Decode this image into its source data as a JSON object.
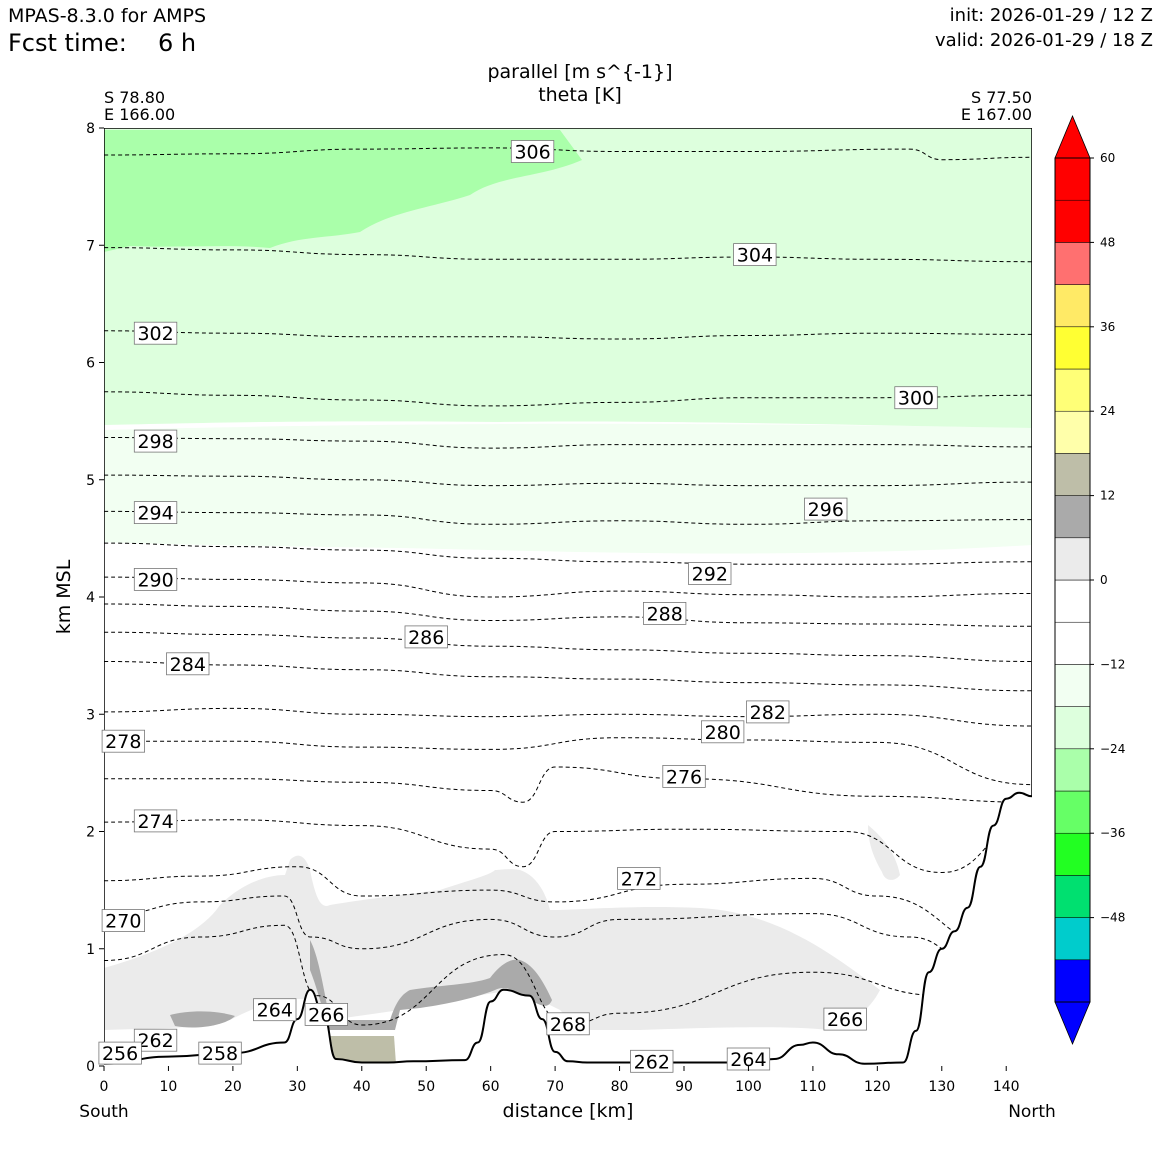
{
  "header": {
    "model": "MPAS-8.3.0 for AMPS",
    "fcst_label": "Fcst time:",
    "fcst_value": "6 h",
    "init": "init: 2026-01-29 / 12 Z",
    "valid": "valid: 2026-01-29 / 18 Z"
  },
  "chart_data": {
    "type": "cross-section",
    "title_line1": "parallel [m s^{-1}]",
    "title_line2": "theta [K]",
    "left_endpoint": {
      "lat": "S 78.80",
      "lon": "E 166.00"
    },
    "right_endpoint": {
      "lat": "S 77.50",
      "lon": "E 167.00"
    },
    "xlabel": "distance [km]",
    "ylabel": "km MSL",
    "x_start_label": "South",
    "x_end_label": "North",
    "xlim": [
      0,
      144
    ],
    "ylim": [
      0,
      8
    ],
    "xticks": [
      0,
      10,
      20,
      30,
      40,
      50,
      60,
      70,
      80,
      90,
      100,
      110,
      120,
      130,
      140
    ],
    "yticks": [
      0,
      1,
      2,
      3,
      4,
      5,
      6,
      7,
      8
    ],
    "colorbar": {
      "levels": [
        -60,
        -54,
        -48,
        -42,
        -36,
        -30,
        -24,
        -18,
        -12,
        -6,
        0,
        6,
        12,
        18,
        24,
        30,
        36,
        42,
        48,
        54,
        60
      ],
      "colors": [
        "#0000ff",
        "#00cccc",
        "#00e070",
        "#22ff22",
        "#66ff66",
        "#aaffaa",
        "#ddffdd",
        "#f2fff2",
        "#ffffff",
        "#ffffff",
        "#ebebeb",
        "#aaaaaa",
        "#bebea8",
        "#ffffaa",
        "#ffff77",
        "#ffff33",
        "#ffea66",
        "#ff7070",
        "#ff0000",
        "#ff0000"
      ],
      "tick_values": [
        60,
        48,
        36,
        24,
        12,
        0,
        -12,
        -24,
        -36,
        -48
      ],
      "tick_labels": [
        "60",
        "48",
        "36",
        "24",
        "12",
        "0",
        "−12",
        "−24",
        "−36",
        "−48"
      ],
      "extend": "both"
    },
    "terrain": {
      "x": [
        0,
        10,
        20,
        28,
        30,
        32,
        34,
        36,
        40,
        44,
        48,
        56,
        58,
        60,
        62,
        66,
        68,
        70,
        72,
        75,
        80,
        90,
        100,
        104,
        108,
        110,
        114,
        118,
        124,
        126,
        128,
        130,
        132,
        134,
        136,
        138,
        140,
        142,
        144
      ],
      "km": [
        0.02,
        0.08,
        0.11,
        0.2,
        0.4,
        0.65,
        0.45,
        0.06,
        0.03,
        0.03,
        0.04,
        0.05,
        0.2,
        0.55,
        0.65,
        0.6,
        0.4,
        0.12,
        0.04,
        0.03,
        0.03,
        0.03,
        0.03,
        0.06,
        0.18,
        0.2,
        0.1,
        0.02,
        0.03,
        0.3,
        0.8,
        1.0,
        1.15,
        1.35,
        1.7,
        2.05,
        2.28,
        2.33,
        2.3
      ]
    },
    "theta_contour_levels": [
      256,
      258,
      262,
      264,
      266,
      268,
      270,
      272,
      274,
      276,
      278,
      280,
      282,
      284,
      286,
      288,
      290,
      292,
      294,
      296,
      298,
      300,
      302,
      304,
      306
    ],
    "theta_labels": [
      {
        "text": "306",
        "x": 66.5,
        "y": 7.8
      },
      {
        "text": "304",
        "x": 101,
        "y": 6.92
      },
      {
        "text": "302",
        "x": 8,
        "y": 6.25
      },
      {
        "text": "300",
        "x": 126,
        "y": 5.7
      },
      {
        "text": "298",
        "x": 8,
        "y": 5.33
      },
      {
        "text": "296",
        "x": 112,
        "y": 4.75
      },
      {
        "text": "294",
        "x": 8,
        "y": 4.72
      },
      {
        "text": "292",
        "x": 94,
        "y": 4.2
      },
      {
        "text": "290",
        "x": 8,
        "y": 4.15
      },
      {
        "text": "288",
        "x": 87,
        "y": 3.86
      },
      {
        "text": "286",
        "x": 50,
        "y": 3.66
      },
      {
        "text": "284",
        "x": 13,
        "y": 3.43
      },
      {
        "text": "282",
        "x": 103,
        "y": 3.02
      },
      {
        "text": "280",
        "x": 96,
        "y": 2.85
      },
      {
        "text": "278",
        "x": 3,
        "y": 2.77
      },
      {
        "text": "276",
        "x": 90,
        "y": 2.47
      },
      {
        "text": "274",
        "x": 8,
        "y": 2.09
      },
      {
        "text": "272",
        "x": 83,
        "y": 1.6
      },
      {
        "text": "270",
        "x": 3,
        "y": 1.24
      },
      {
        "text": "266",
        "x": 34.5,
        "y": 0.44
      },
      {
        "text": "268",
        "x": 72,
        "y": 0.36
      },
      {
        "text": "266",
        "x": 115,
        "y": 0.4
      },
      {
        "text": "264",
        "x": 26.5,
        "y": 0.48
      },
      {
        "text": "262",
        "x": 8,
        "y": 0.22
      },
      {
        "text": "258",
        "x": 18,
        "y": 0.11
      },
      {
        "text": "256",
        "x": 2.5,
        "y": 0.11
      },
      {
        "text": "262",
        "x": 85,
        "y": 0.04
      },
      {
        "text": "264",
        "x": 100,
        "y": 0.06
      }
    ],
    "theta_lines": [
      {
        "level": 306,
        "x": [
          0,
          20,
          40,
          60,
          80,
          100,
          125,
          130,
          144
        ],
        "km": [
          7.77,
          7.78,
          7.82,
          7.83,
          7.8,
          7.8,
          7.82,
          7.73,
          7.75
        ]
      },
      {
        "level": 304,
        "x": [
          0,
          20,
          40,
          60,
          80,
          100,
          120,
          144
        ],
        "km": [
          6.98,
          6.96,
          6.92,
          6.88,
          6.88,
          6.9,
          6.88,
          6.86
        ]
      },
      {
        "level": 302,
        "x": [
          0,
          20,
          40,
          60,
          80,
          100,
          120,
          144
        ],
        "km": [
          6.27,
          6.25,
          6.22,
          6.22,
          6.2,
          6.23,
          6.25,
          6.24
        ]
      },
      {
        "level": 300,
        "x": [
          0,
          20,
          40,
          60,
          80,
          100,
          120,
          144
        ],
        "km": [
          5.75,
          5.72,
          5.68,
          5.63,
          5.66,
          5.7,
          5.7,
          5.72
        ]
      },
      {
        "level": 298,
        "x": [
          0,
          20,
          40,
          60,
          80,
          100,
          120,
          144
        ],
        "km": [
          5.36,
          5.35,
          5.33,
          5.27,
          5.3,
          5.3,
          5.3,
          5.28
        ]
      },
      {
        "level": 296,
        "x": [
          0,
          20,
          40,
          60,
          80,
          100,
          120,
          144
        ],
        "km": [
          5.04,
          5.03,
          5.0,
          4.95,
          4.97,
          4.95,
          4.95,
          4.98
        ]
      },
      {
        "level": 294,
        "x": [
          0,
          20,
          40,
          60,
          80,
          100,
          120,
          144
        ],
        "km": [
          4.73,
          4.72,
          4.7,
          4.62,
          4.65,
          4.62,
          4.65,
          4.66
        ]
      },
      {
        "level": 292,
        "x": [
          0,
          20,
          40,
          60,
          80,
          100,
          120,
          144
        ],
        "km": [
          4.46,
          4.43,
          4.4,
          4.33,
          4.3,
          4.28,
          4.28,
          4.3
        ]
      },
      {
        "level": 290,
        "x": [
          0,
          20,
          40,
          60,
          80,
          100,
          120,
          144
        ],
        "km": [
          4.17,
          4.15,
          4.12,
          4.0,
          4.05,
          4.02,
          4.0,
          4.03
        ]
      },
      {
        "level": 288,
        "x": [
          0,
          20,
          40,
          60,
          80,
          100,
          120,
          144
        ],
        "km": [
          3.94,
          3.92,
          3.88,
          3.8,
          3.83,
          3.78,
          3.77,
          3.75
        ]
      },
      {
        "level": 286,
        "x": [
          0,
          20,
          40,
          60,
          80,
          100,
          120,
          144
        ],
        "km": [
          3.7,
          3.68,
          3.65,
          3.58,
          3.55,
          3.52,
          3.5,
          3.45
        ]
      },
      {
        "level": 284,
        "x": [
          0,
          20,
          40,
          60,
          80,
          100,
          120,
          144
        ],
        "km": [
          3.45,
          3.42,
          3.38,
          3.32,
          3.3,
          3.27,
          3.25,
          3.2
        ]
      },
      {
        "level": 282,
        "x": [
          0,
          20,
          40,
          60,
          80,
          100,
          120,
          144
        ],
        "km": [
          3.02,
          3.05,
          3.0,
          2.98,
          3.0,
          2.98,
          3.0,
          2.9
        ]
      },
      {
        "level": 278,
        "x": [
          0,
          20,
          40,
          60,
          80,
          100,
          120,
          144
        ],
        "km": [
          2.77,
          2.77,
          2.72,
          2.7,
          2.8,
          2.78,
          2.76,
          2.4
        ]
      },
      {
        "level": 276,
        "x": [
          0,
          20,
          40,
          60,
          65,
          70,
          90,
          120,
          144
        ],
        "km": [
          2.45,
          2.45,
          2.42,
          2.35,
          2.25,
          2.55,
          2.45,
          2.3,
          2.25
        ]
      },
      {
        "level": 274,
        "x": [
          0,
          20,
          40,
          60,
          65,
          70,
          90,
          115,
          130,
          144
        ],
        "km": [
          2.08,
          2.1,
          2.05,
          1.85,
          1.7,
          2.0,
          2.02,
          2.0,
          1.65,
          2.1
        ]
      },
      {
        "level": 272,
        "x": [
          0,
          15,
          30,
          40,
          60,
          70,
          90,
          110,
          120,
          140
        ],
        "km": [
          1.58,
          1.62,
          1.7,
          1.45,
          1.5,
          1.4,
          1.55,
          1.6,
          1.45,
          1.0
        ]
      },
      {
        "level": 270,
        "x": [
          0,
          15,
          28,
          32,
          40,
          60,
          70,
          80,
          110,
          125,
          135
        ],
        "km": [
          1.28,
          1.4,
          1.45,
          1.1,
          1.0,
          1.25,
          1.1,
          1.25,
          1.3,
          1.1,
          0.9
        ]
      },
      {
        "level": 268,
        "x": [
          0,
          15,
          28,
          33,
          40,
          62,
          72,
          80,
          110,
          130
        ],
        "km": [
          0.9,
          1.1,
          1.2,
          0.6,
          0.35,
          0.95,
          0.35,
          0.45,
          0.8,
          0.6
        ]
      }
    ]
  }
}
